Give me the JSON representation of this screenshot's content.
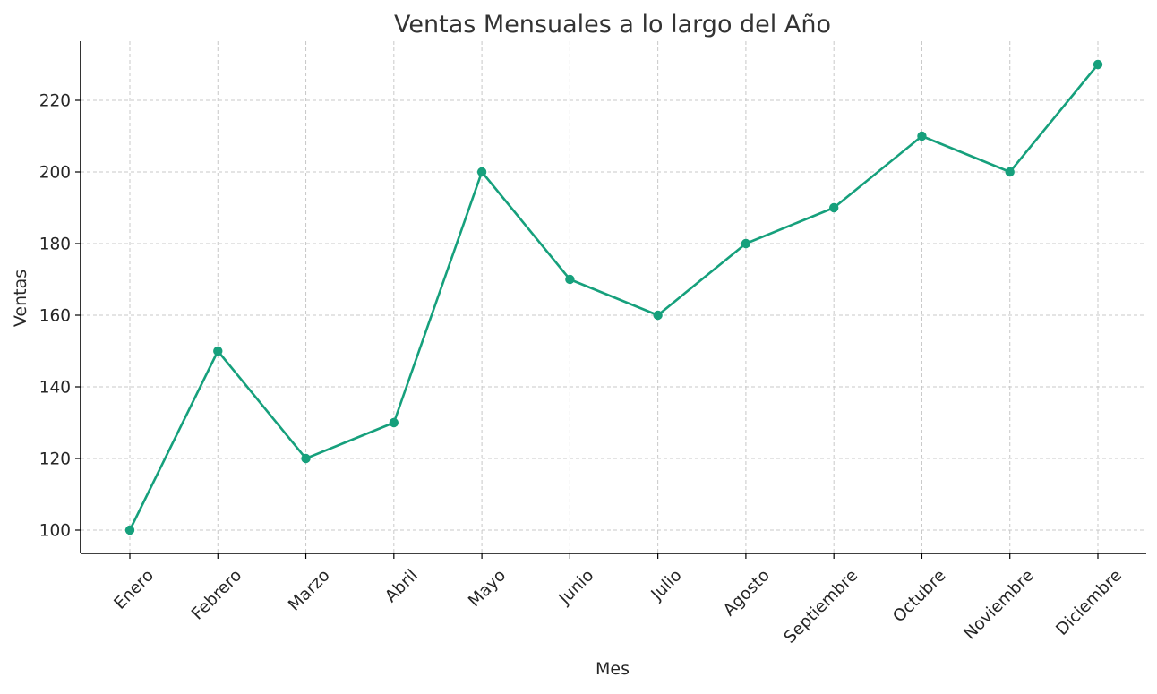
{
  "chart_data": {
    "type": "line",
    "title": "Ventas Mensuales a lo largo del Año",
    "xlabel": "Mes",
    "ylabel": "Ventas",
    "categories": [
      "Enero",
      "Febrero",
      "Marzo",
      "Abril",
      "Mayo",
      "Junio",
      "Julio",
      "Agosto",
      "Septiembre",
      "Octubre",
      "Noviembre",
      "Diciembre"
    ],
    "series": [
      {
        "values": [
          100,
          150,
          120,
          130,
          200,
          170,
          160,
          180,
          190,
          210,
          200,
          230
        ],
        "color": "#16a07c",
        "marker": "circle"
      }
    ],
    "ylim": [
      93.5,
      236.5
    ],
    "yticks": [
      100,
      120,
      140,
      160,
      180,
      200,
      220
    ],
    "grid": true,
    "legend": "none",
    "xtick_rotation": 45
  }
}
